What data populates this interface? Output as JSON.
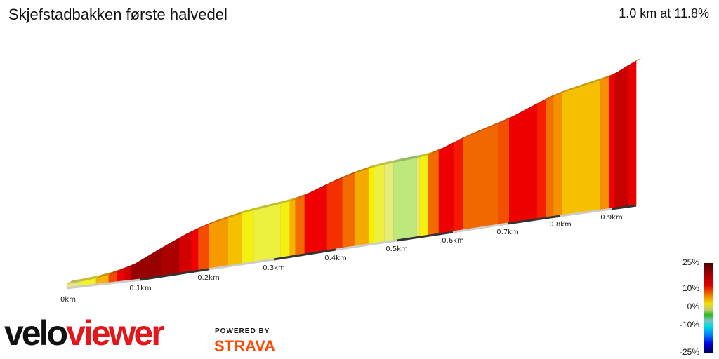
{
  "header": {
    "title": "Skjefstadbakken første halvedel",
    "summary": "1.0 km at 11.8%"
  },
  "chart_data": {
    "type": "area",
    "title": "Skjefstadbakken første halvedel",
    "x_unit": "km",
    "x_ticks": [
      "0km",
      "0.1km",
      "0.2km",
      "0.3km",
      "0.4km",
      "0.5km",
      "0.6km",
      "0.7km",
      "0.8km",
      "0.9km"
    ],
    "segments": [
      {
        "from": 0.0,
        "to": 0.017,
        "gradient": 3,
        "color": "#e8e878"
      },
      {
        "from": 0.017,
        "to": 0.04,
        "gradient": 5,
        "color": "#f2f030"
      },
      {
        "from": 0.04,
        "to": 0.057,
        "gradient": 8,
        "color": "#f5b400"
      },
      {
        "from": 0.057,
        "to": 0.069,
        "gradient": 12,
        "color": "#f04800"
      },
      {
        "from": 0.069,
        "to": 0.078,
        "gradient": 14,
        "color": "#ee0000"
      },
      {
        "from": 0.078,
        "to": 0.087,
        "gradient": 16,
        "color": "#d00000"
      },
      {
        "from": 0.087,
        "to": 0.131,
        "gradient": 22,
        "color": "#960000"
      },
      {
        "from": 0.131,
        "to": 0.157,
        "gradient": 19,
        "color": "#aa0000"
      },
      {
        "from": 0.157,
        "to": 0.175,
        "gradient": 16,
        "color": "#d20000"
      },
      {
        "from": 0.175,
        "to": 0.185,
        "gradient": 14,
        "color": "#f00000"
      },
      {
        "from": 0.185,
        "to": 0.201,
        "gradient": 12,
        "color": "#f44c00"
      },
      {
        "from": 0.201,
        "to": 0.23,
        "gradient": 9,
        "color": "#f59a00"
      },
      {
        "from": 0.23,
        "to": 0.251,
        "gradient": 8,
        "color": "#f5c000"
      },
      {
        "from": 0.251,
        "to": 0.269,
        "gradient": 5,
        "color": "#f5f010"
      },
      {
        "from": 0.269,
        "to": 0.311,
        "gradient": 4,
        "color": "#eef040"
      },
      {
        "from": 0.311,
        "to": 0.326,
        "gradient": 5,
        "color": "#f5f010"
      },
      {
        "from": 0.326,
        "to": 0.335,
        "gradient": 8,
        "color": "#f5b400"
      },
      {
        "from": 0.335,
        "to": 0.35,
        "gradient": 10,
        "color": "#f26a00"
      },
      {
        "from": 0.35,
        "to": 0.386,
        "gradient": 14,
        "color": "#f00000"
      },
      {
        "from": 0.386,
        "to": 0.411,
        "gradient": 12,
        "color": "#f43000"
      },
      {
        "from": 0.411,
        "to": 0.431,
        "gradient": 10,
        "color": "#f26a00"
      },
      {
        "from": 0.431,
        "to": 0.454,
        "gradient": 8,
        "color": "#f5aa00"
      },
      {
        "from": 0.454,
        "to": 0.463,
        "gradient": 5,
        "color": "#f5f000"
      },
      {
        "from": 0.463,
        "to": 0.48,
        "gradient": 4,
        "color": "#eef040"
      },
      {
        "from": 0.48,
        "to": 0.495,
        "gradient": 3,
        "color": "#e6ec78"
      },
      {
        "from": 0.495,
        "to": 0.536,
        "gradient": 2,
        "color": "#bce87c"
      },
      {
        "from": 0.536,
        "to": 0.541,
        "gradient": 4,
        "color": "#e6ec78"
      },
      {
        "from": 0.541,
        "to": 0.556,
        "gradient": 5,
        "color": "#f5f010"
      },
      {
        "from": 0.556,
        "to": 0.575,
        "gradient": 10,
        "color": "#f26a00"
      },
      {
        "from": 0.575,
        "to": 0.601,
        "gradient": 14,
        "color": "#ee0000"
      },
      {
        "from": 0.601,
        "to": 0.619,
        "gradient": 13,
        "color": "#f41800"
      },
      {
        "from": 0.619,
        "to": 0.683,
        "gradient": 10,
        "color": "#f26800"
      },
      {
        "from": 0.683,
        "to": 0.703,
        "gradient": 11,
        "color": "#f25000"
      },
      {
        "from": 0.703,
        "to": 0.756,
        "gradient": 14,
        "color": "#ee0000"
      },
      {
        "from": 0.756,
        "to": 0.773,
        "gradient": 13,
        "color": "#f42000"
      },
      {
        "from": 0.773,
        "to": 0.787,
        "gradient": 10,
        "color": "#f27000"
      },
      {
        "from": 0.787,
        "to": 0.803,
        "gradient": 9,
        "color": "#f59000"
      },
      {
        "from": 0.803,
        "to": 0.878,
        "gradient": 7,
        "color": "#f5c000"
      },
      {
        "from": 0.878,
        "to": 0.896,
        "gradient": 9,
        "color": "#f59000"
      },
      {
        "from": 0.896,
        "to": 0.905,
        "gradient": 14,
        "color": "#ee0000"
      },
      {
        "from": 0.905,
        "to": 0.932,
        "gradient": 17,
        "color": "#c80000"
      },
      {
        "from": 0.932,
        "to": 0.948,
        "gradient": 14,
        "color": "#e80000"
      }
    ],
    "legend": {
      "labels": [
        "25%",
        "10%",
        "0%",
        "-10%",
        "-25%"
      ],
      "values": [
        25,
        10,
        0,
        -10,
        -25
      ]
    },
    "grid": false
  },
  "branding": {
    "logo_part1": "velo",
    "logo_part2": "viewer",
    "powered_by": "POWERED BY",
    "strava": "STRAVA"
  }
}
